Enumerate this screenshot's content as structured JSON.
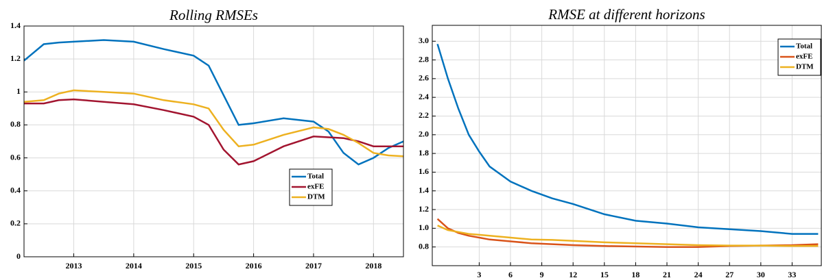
{
  "chart_data": [
    {
      "type": "line",
      "title": "Rolling RMSEs",
      "x": [
        2012.17,
        2012.5,
        2012.75,
        2013,
        2013.5,
        2014,
        2014.5,
        2015,
        2015.25,
        2015.5,
        2015.75,
        2016,
        2016.5,
        2017,
        2017.25,
        2017.5,
        2017.75,
        2018,
        2018.25,
        2018.5
      ],
      "series": [
        {
          "name": "Total",
          "color": "#0072bd",
          "values": [
            1.19,
            1.29,
            1.3,
            1.305,
            1.315,
            1.305,
            1.26,
            1.22,
            1.16,
            0.98,
            0.8,
            0.81,
            0.84,
            0.82,
            0.76,
            0.63,
            0.56,
            0.6,
            0.66,
            0.7
          ]
        },
        {
          "name": "exFE",
          "color": "#a2142f",
          "values": [
            0.93,
            0.93,
            0.95,
            0.955,
            0.94,
            0.925,
            0.89,
            0.85,
            0.8,
            0.65,
            0.56,
            0.58,
            0.67,
            0.73,
            0.725,
            0.72,
            0.7,
            0.67,
            0.67,
            0.67
          ]
        },
        {
          "name": "DTM",
          "color": "#edb120",
          "values": [
            0.94,
            0.95,
            0.99,
            1.01,
            1.0,
            0.99,
            0.95,
            0.925,
            0.9,
            0.77,
            0.67,
            0.68,
            0.74,
            0.785,
            0.775,
            0.74,
            0.69,
            0.63,
            0.615,
            0.61
          ]
        }
      ],
      "xlim": [
        2012.17,
        2018.5
      ],
      "xticks": [
        2013,
        2014,
        2015,
        2016,
        2017,
        2018
      ],
      "ylim": [
        0,
        1.4
      ],
      "yticks": [
        0,
        0.2,
        0.4,
        0.6,
        0.8,
        1,
        1.2,
        1.4
      ],
      "grid": true,
      "legend": "lower-right"
    },
    {
      "type": "line",
      "title": "RMSE at different horizons",
      "x": [
        -1,
        0,
        1,
        2,
        3,
        4,
        6,
        8,
        10,
        12,
        15,
        18,
        21,
        24,
        27,
        30,
        33,
        35.5
      ],
      "series": [
        {
          "name": "Total",
          "color": "#0072bd",
          "values": [
            2.97,
            2.6,
            2.28,
            2.0,
            1.82,
            1.66,
            1.5,
            1.4,
            1.32,
            1.26,
            1.15,
            1.08,
            1.05,
            1.01,
            0.99,
            0.97,
            0.94,
            0.94
          ]
        },
        {
          "name": "exFE",
          "color": "#d95319",
          "values": [
            1.1,
            1.0,
            0.95,
            0.92,
            0.9,
            0.88,
            0.86,
            0.84,
            0.83,
            0.82,
            0.81,
            0.805,
            0.8,
            0.8,
            0.81,
            0.815,
            0.82,
            0.83
          ]
        },
        {
          "name": "DTM",
          "color": "#edb120",
          "values": [
            1.03,
            0.98,
            0.96,
            0.94,
            0.93,
            0.92,
            0.9,
            0.88,
            0.875,
            0.865,
            0.85,
            0.84,
            0.83,
            0.82,
            0.815,
            0.815,
            0.81,
            0.81
          ]
        }
      ],
      "xlim": [
        -1.5,
        35.8
      ],
      "xticks": [
        3,
        6,
        9,
        12,
        15,
        18,
        21,
        24,
        27,
        30,
        33
      ],
      "ylim": [
        0.6,
        3.17
      ],
      "yticks": [
        0.8,
        {
          "value": 1,
          "label": "1.0"
        },
        1.2,
        1.4,
        1.6,
        1.8,
        {
          "value": 2,
          "label": "2.0"
        },
        2.2,
        2.4,
        2.6,
        2.8,
        {
          "value": 3,
          "label": "3.0"
        }
      ],
      "grid": true,
      "legend": "upper-right"
    }
  ]
}
